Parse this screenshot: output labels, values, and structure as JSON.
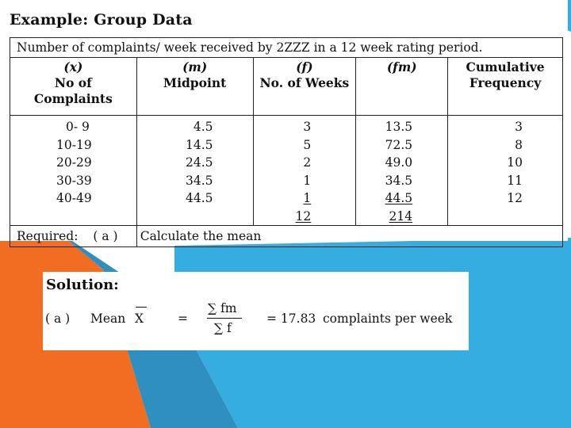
{
  "colors": {
    "orange": "#f16d22",
    "blue": "#35ade1",
    "dark_blue": "#2f8fbf",
    "white": "#ffffff"
  },
  "example": {
    "title": "Example: Group Data",
    "caption": "Number of complaints/ week received by 2ZZZ in a 12 week rating period.",
    "headers": {
      "x": {
        "symbol": "(x)",
        "line1": "No of",
        "line2": "Complaints"
      },
      "m": {
        "symbol": "(m)",
        "line1": "Midpoint"
      },
      "f": {
        "symbol": "(f)",
        "line1": "No. of Weeks"
      },
      "fm": {
        "symbol": "(fm)"
      },
      "cf": {
        "line1": "Cumulative",
        "line2": "Frequency"
      }
    },
    "rows": [
      {
        "x": "0- 9",
        "m": "4.5",
        "f": "3",
        "fm": "13.5",
        "cf": "3"
      },
      {
        "x": "10-19",
        "m": "14.5",
        "f": "5",
        "fm": "72.5",
        "cf": "8"
      },
      {
        "x": "20-29",
        "m": "24.5",
        "f": "2",
        "fm": "49.0",
        "cf": "10"
      },
      {
        "x": "30-39",
        "m": "34.5",
        "f": "1",
        "fm": "34.5",
        "cf": "11"
      },
      {
        "x": "40-49",
        "m": "44.5",
        "f": "1",
        "fm": "44.5",
        "cf": "12"
      }
    ],
    "totals": {
      "f": "12",
      "fm": "214"
    },
    "required": {
      "label": "Required:",
      "part": "( a )",
      "text": "Calculate the mean"
    }
  },
  "solution": {
    "title": "Solution:",
    "part": "( a )",
    "mean_label": "Mean",
    "symbol": "X",
    "equals": "=",
    "numerator": "∑ fm",
    "denominator": "∑ f",
    "result": "= 17.83",
    "unit_text": "complaints per week"
  }
}
